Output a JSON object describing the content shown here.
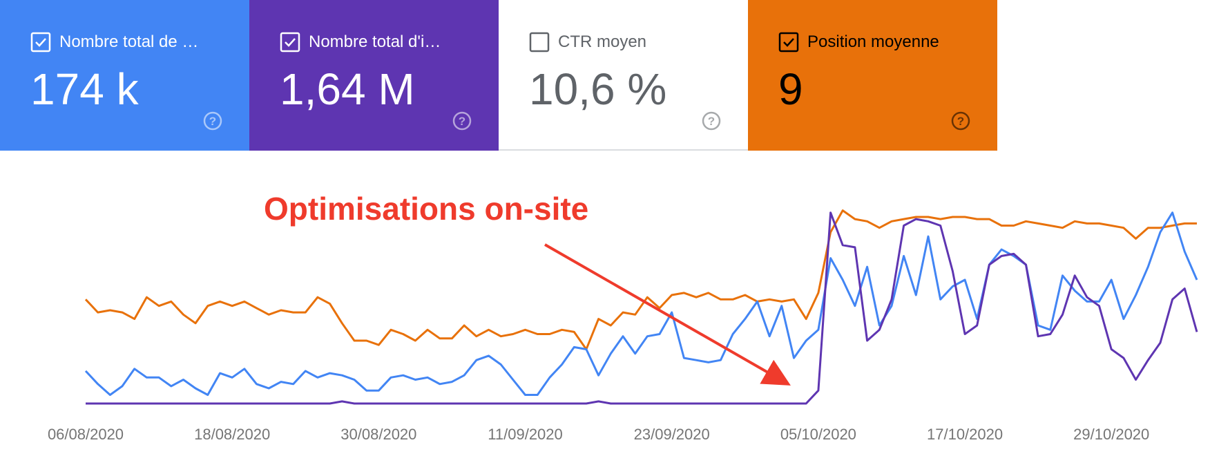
{
  "cards": [
    {
      "label": "Nombre total de …",
      "value": "174 k",
      "checked": true,
      "color": "#4285f4",
      "text_color": "#ffffff"
    },
    {
      "label": "Nombre total d'i…",
      "value": "1,64 M",
      "checked": true,
      "color": "#5e35b1",
      "text_color": "#ffffff"
    },
    {
      "label": "CTR moyen",
      "value": "10,6 %",
      "checked": false,
      "color": "#ffffff",
      "text_color": "#5f6368"
    },
    {
      "label": "Position moyenne",
      "value": "9",
      "checked": true,
      "color": "#e8710a",
      "text_color": "#000000"
    }
  ],
  "chart_data": {
    "type": "line",
    "annotation": "Optimisations on-site",
    "ylim": [
      0,
      100
    ],
    "categories": [
      "06/08/2020",
      null,
      null,
      null,
      null,
      null,
      null,
      null,
      null,
      null,
      null,
      null,
      "18/08/2020",
      null,
      null,
      null,
      null,
      null,
      null,
      null,
      null,
      null,
      null,
      null,
      "30/08/2020",
      null,
      null,
      null,
      null,
      null,
      null,
      null,
      null,
      null,
      null,
      null,
      "11/09/2020",
      null,
      null,
      null,
      null,
      null,
      null,
      null,
      null,
      null,
      null,
      null,
      "23/09/2020",
      null,
      null,
      null,
      null,
      null,
      null,
      null,
      null,
      null,
      null,
      null,
      "05/10/2020",
      null,
      null,
      null,
      null,
      null,
      null,
      null,
      null,
      null,
      null,
      null,
      "17/10/2020",
      null,
      null,
      null,
      null,
      null,
      null,
      null,
      null,
      null,
      null,
      null,
      "29/10/2020",
      null,
      null,
      null,
      null,
      null,
      null,
      null
    ],
    "series": [
      {
        "color": "#e8710a",
        "values": [
          55,
          49,
          50,
          49,
          46,
          56,
          52,
          54,
          48,
          44,
          52,
          54,
          52,
          54,
          51,
          48,
          50,
          49,
          49,
          56,
          53,
          44,
          36,
          36,
          34,
          41,
          39,
          36,
          41,
          37,
          37,
          43,
          38,
          41,
          38,
          39,
          41,
          39,
          39,
          41,
          40,
          32,
          46,
          43,
          49,
          48,
          56,
          51,
          57,
          58,
          56,
          58,
          55,
          55,
          57,
          54,
          55,
          54,
          55,
          46,
          58,
          86,
          96,
          92,
          91,
          88,
          91,
          92,
          93,
          93,
          92,
          93,
          93,
          92,
          92,
          89,
          89,
          91,
          90,
          89,
          88,
          91,
          90,
          90,
          89,
          88,
          83,
          88,
          88,
          89,
          90,
          90
        ]
      },
      {
        "color": "#4285f4",
        "values": [
          22,
          16,
          11,
          15,
          23,
          19,
          19,
          15,
          18,
          14,
          11,
          21,
          19,
          23,
          16,
          14,
          17,
          16,
          22,
          19,
          21,
          20,
          18,
          13,
          13,
          19,
          20,
          18,
          19,
          16,
          17,
          20,
          27,
          29,
          25,
          18,
          11,
          11,
          19,
          25,
          33,
          32,
          20,
          30,
          38,
          30,
          38,
          39,
          49,
          28,
          27,
          26,
          27,
          39,
          46,
          54,
          38,
          52,
          28,
          36,
          41,
          74,
          64,
          52,
          70,
          43,
          52,
          75,
          57,
          84,
          55,
          61,
          64,
          46,
          71,
          78,
          75,
          71,
          43,
          41,
          66,
          59,
          54,
          54,
          64,
          46,
          57,
          70,
          86,
          95,
          77,
          64
        ]
      },
      {
        "color": "#5e35b1",
        "values": [
          7,
          7,
          7,
          7,
          7,
          7,
          7,
          7,
          7,
          7,
          7,
          7,
          7,
          7,
          7,
          7,
          7,
          7,
          7,
          7,
          7,
          8,
          7,
          7,
          7,
          7,
          7,
          7,
          7,
          7,
          7,
          7,
          7,
          7,
          7,
          7,
          7,
          7,
          7,
          7,
          7,
          7,
          8,
          7,
          7,
          7,
          7,
          7,
          7,
          7,
          7,
          7,
          7,
          7,
          7,
          7,
          7,
          7,
          7,
          7,
          13,
          95,
          80,
          79,
          36,
          41,
          55,
          89,
          92,
          91,
          89,
          68,
          39,
          43,
          71,
          75,
          76,
          71,
          38,
          39,
          48,
          66,
          56,
          52,
          32,
          28,
          18,
          27,
          35,
          55,
          60,
          40
        ]
      }
    ]
  }
}
